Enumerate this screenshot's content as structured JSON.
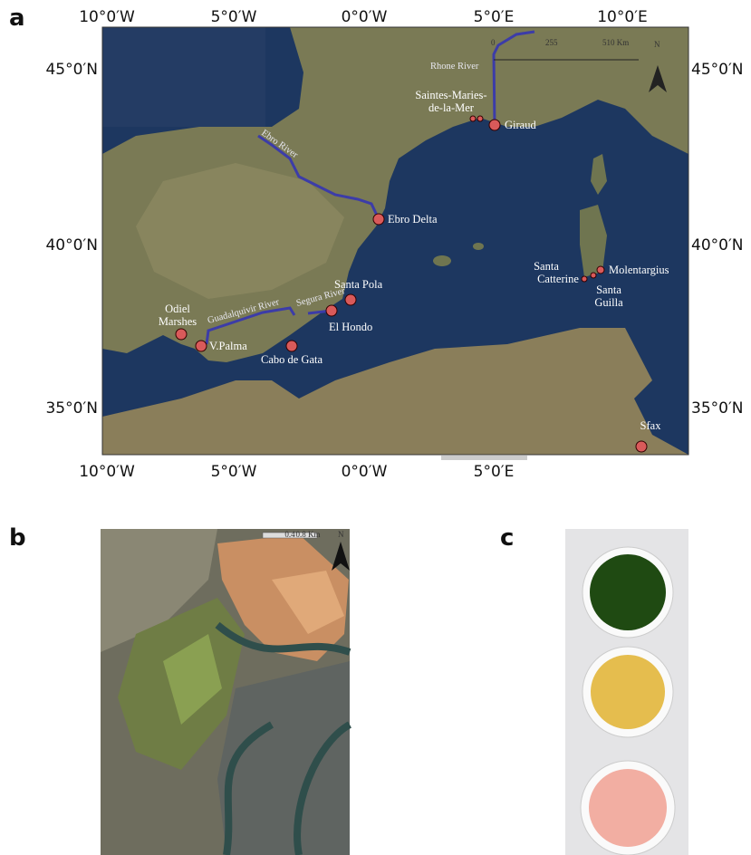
{
  "panel_a": {
    "label": "a",
    "top_ticks": [
      "10°0′W",
      "5°0′W",
      "0°0′W",
      "5°0′E",
      "10°0′E"
    ],
    "bottom_ticks": [
      "10°0′W",
      "5°0′W",
      "0°0′W",
      "5°0′E"
    ],
    "left_ticks": [
      "45°0′N",
      "40°0′N",
      "35°0′N"
    ],
    "right_ticks": [
      "45°0′N",
      "40°0′N",
      "35°0′N"
    ],
    "scale": [
      "0",
      "255",
      "510 Km"
    ],
    "north": "N",
    "rivers": [
      "Rhone River",
      "Ebro River",
      "Guadalquivir River",
      "Segura River"
    ],
    "sites": [
      "Saintes-Maries-",
      "de-la-Mer",
      "Giraud",
      "Ebro Delta",
      "Santa Pola",
      "El Hondo",
      "Odiel",
      "Marshes",
      "V.Palma",
      "Cabo de Gata",
      "Santa",
      "Catterine",
      "Molentargius",
      "Santa",
      "Guilla",
      "Sfax"
    ]
  },
  "panel_b": {
    "label": "b",
    "scale": [
      "0.4",
      "0.8 Km"
    ],
    "north": "N"
  },
  "panel_c": {
    "label": "c"
  }
}
